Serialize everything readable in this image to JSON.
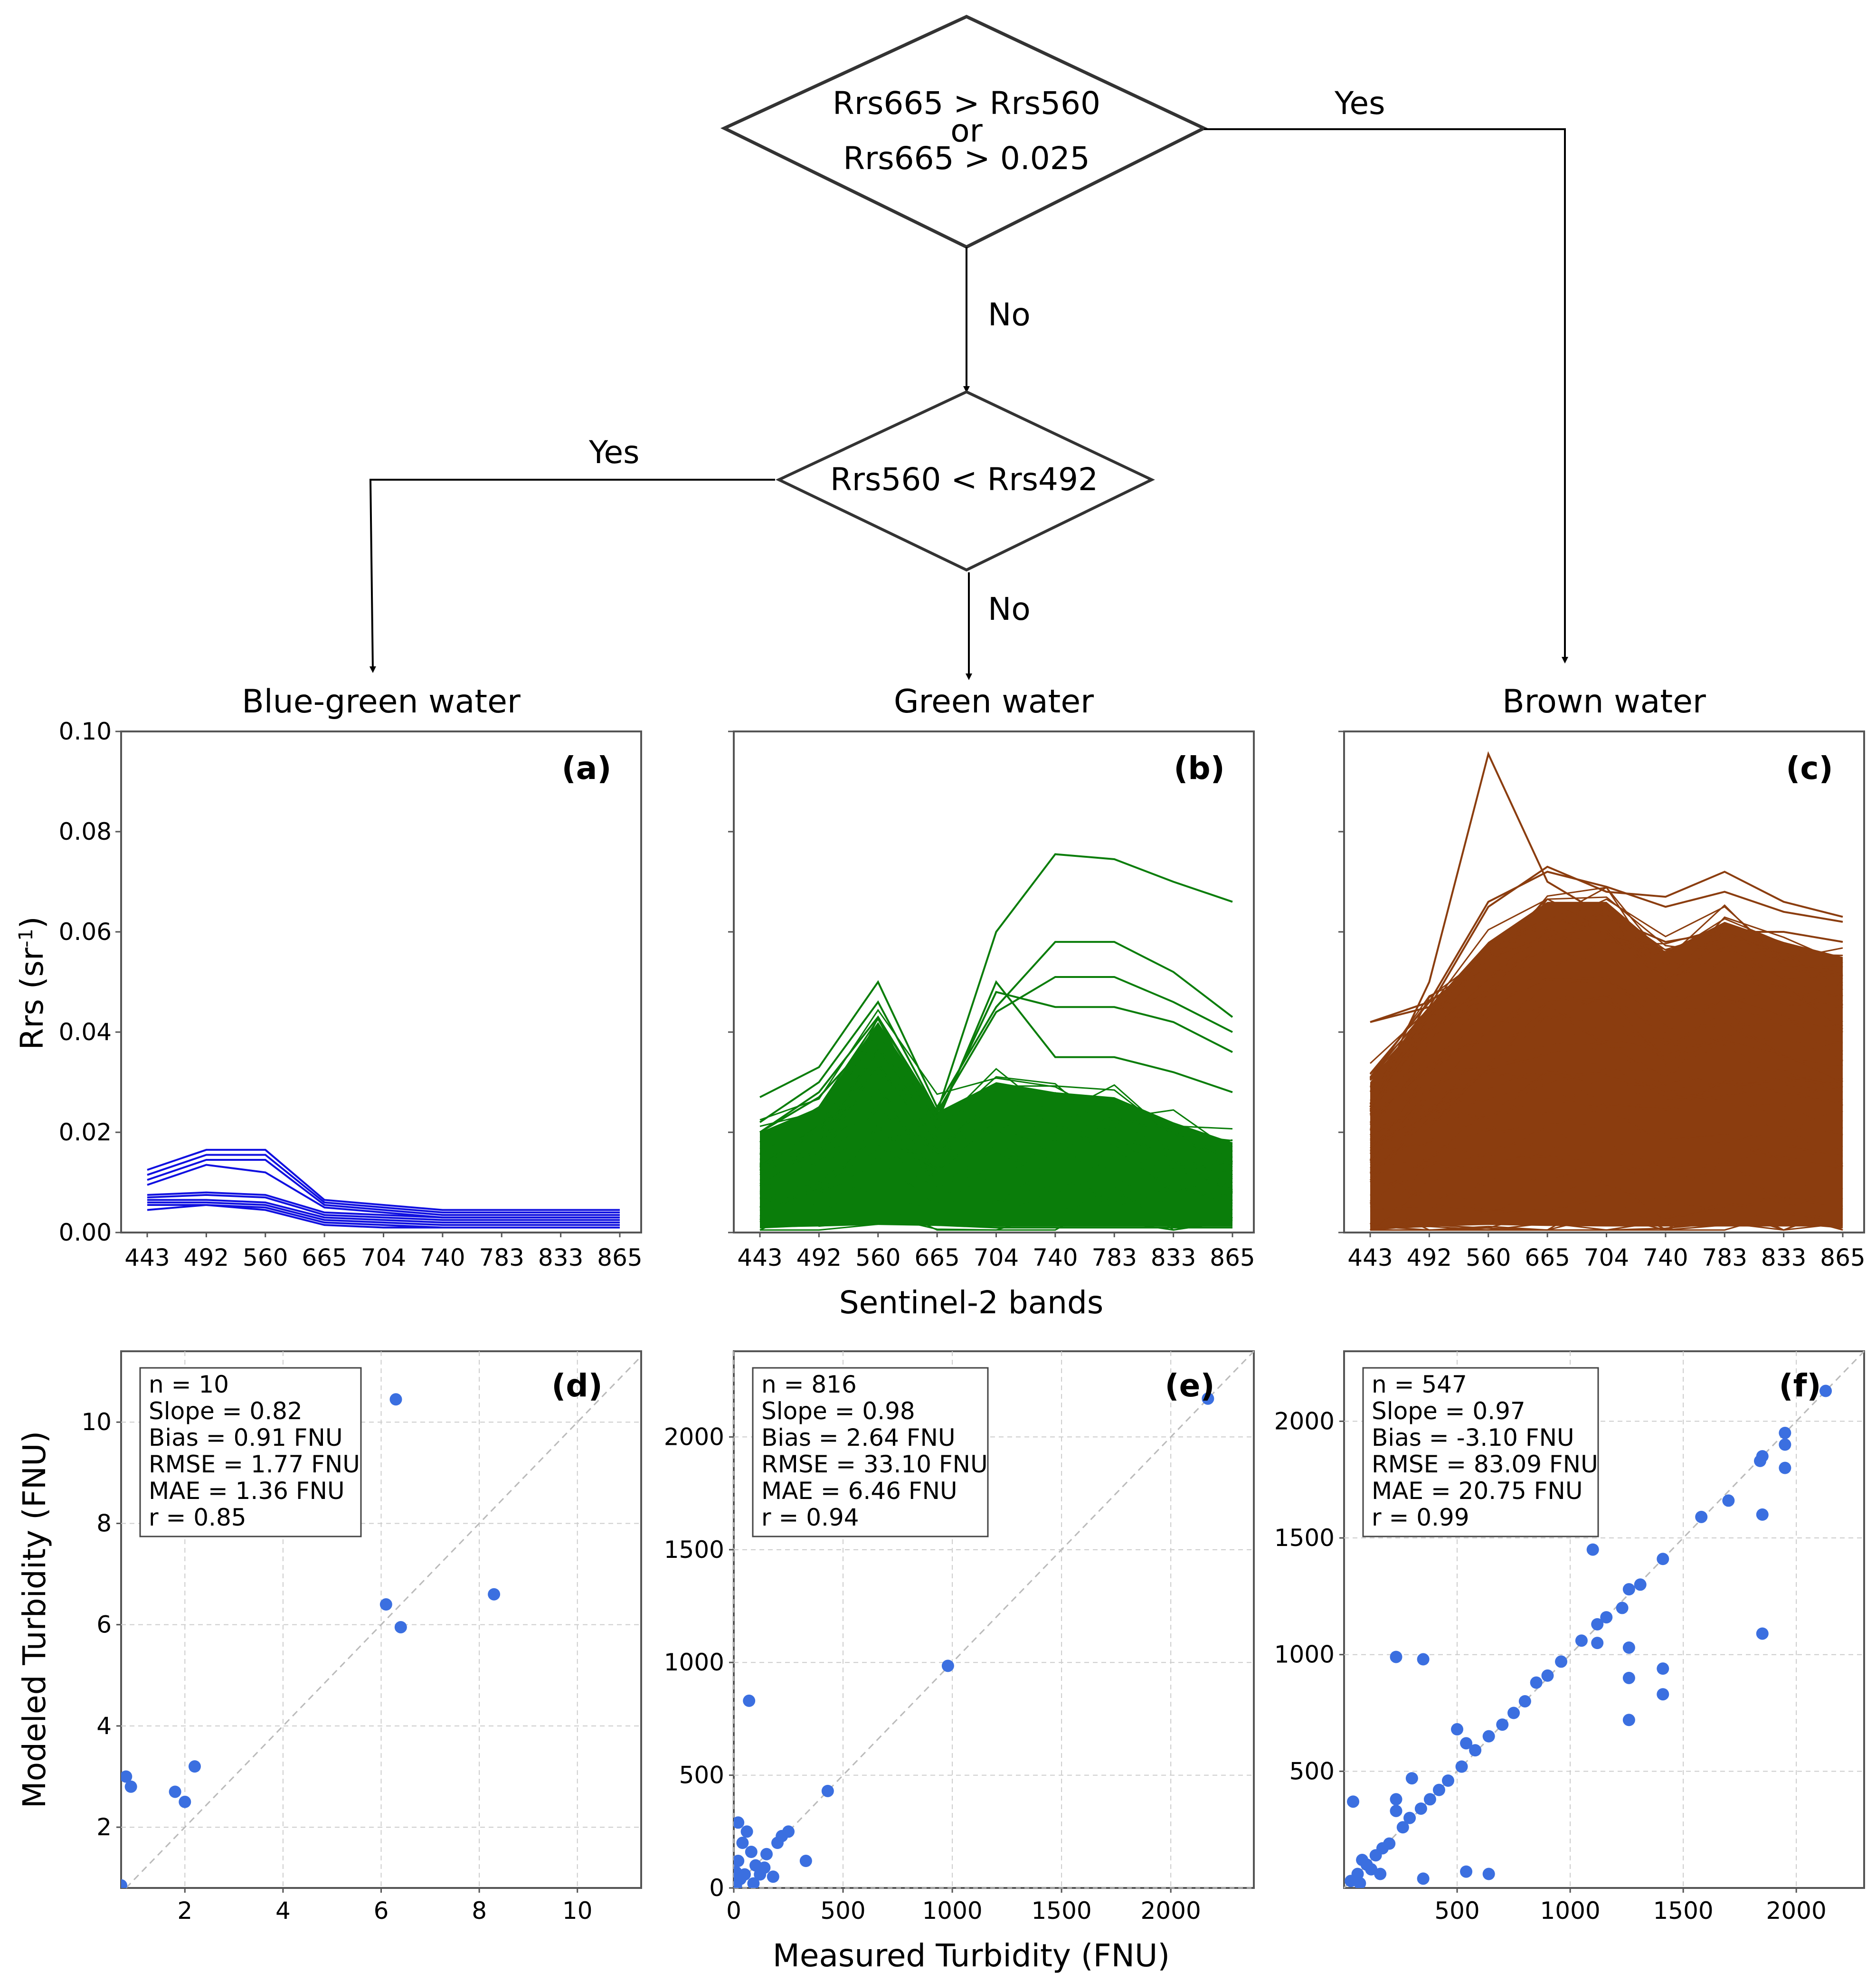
{
  "flowchart": {
    "decision1": {
      "line1": "Rrs665 > Rrs560",
      "line2": "or",
      "line3": "Rrs665 > 0.025"
    },
    "decision2": {
      "text": "Rrs560 < Rrs492"
    },
    "yes_label_1": "Yes",
    "no_label_1": "No",
    "yes_label_2": "Yes",
    "no_label_2": "No"
  },
  "colors": {
    "blue": "#1010e0",
    "green": "#0a7d0a",
    "brown": "#8b3d0f",
    "scatter": "#3b6fe0",
    "grid": "#cccccc",
    "diagonal": "#bbbbbb"
  },
  "chart_data": [
    {
      "id": "a",
      "type": "line",
      "title": "Blue-green water",
      "panel_label": "(a)",
      "categories": [
        "443",
        "492",
        "560",
        "665",
        "704",
        "740",
        "783",
        "833",
        "865"
      ],
      "ylim": [
        0,
        0.1
      ],
      "yticks": [
        "0.00",
        "0.02",
        "0.04",
        "0.06",
        "0.08",
        "0.10"
      ],
      "ylabel": "Rrs (sr-1)",
      "ylabel_main": "Rrs (sr",
      "ylabel_sup": "-1",
      "ylabel_end": ")",
      "series": [
        {
          "name": "s1",
          "values": [
            0.0125,
            0.0165,
            0.0165,
            0.0065,
            0.0055,
            0.0045,
            0.0045,
            0.0045,
            0.0045
          ]
        },
        {
          "name": "s2",
          "values": [
            0.0115,
            0.0155,
            0.0155,
            0.006,
            0.005,
            0.004,
            0.004,
            0.004,
            0.004
          ]
        },
        {
          "name": "s3",
          "values": [
            0.0105,
            0.0145,
            0.0145,
            0.0055,
            0.0045,
            0.0035,
            0.0035,
            0.0035,
            0.0035
          ]
        },
        {
          "name": "s4",
          "values": [
            0.0095,
            0.0135,
            0.012,
            0.005,
            0.004,
            0.003,
            0.003,
            0.003,
            0.003
          ]
        },
        {
          "name": "s5",
          "values": [
            0.0075,
            0.008,
            0.0075,
            0.004,
            0.0035,
            0.003,
            0.003,
            0.003,
            0.003
          ]
        },
        {
          "name": "s6",
          "values": [
            0.007,
            0.0075,
            0.007,
            0.0035,
            0.003,
            0.0025,
            0.0025,
            0.0025,
            0.0025
          ]
        },
        {
          "name": "s7",
          "values": [
            0.0065,
            0.0065,
            0.006,
            0.003,
            0.0025,
            0.002,
            0.002,
            0.002,
            0.002
          ]
        },
        {
          "name": "s8",
          "values": [
            0.006,
            0.006,
            0.0055,
            0.0025,
            0.002,
            0.0015,
            0.0015,
            0.0015,
            0.0015
          ]
        },
        {
          "name": "s9",
          "values": [
            0.0055,
            0.0055,
            0.005,
            0.002,
            0.0015,
            0.001,
            0.001,
            0.001,
            0.001
          ]
        },
        {
          "name": "s10",
          "values": [
            0.0045,
            0.0055,
            0.0045,
            0.0015,
            0.001,
            0.001,
            0.001,
            0.001,
            0.001
          ]
        }
      ]
    },
    {
      "id": "b",
      "type": "line",
      "title": "Green water",
      "panel_label": "(b)",
      "categories": [
        "443",
        "492",
        "560",
        "665",
        "704",
        "740",
        "783",
        "833",
        "865"
      ],
      "ylim": [
        0,
        0.1
      ],
      "n_series": 816,
      "series": [
        {
          "name": "max",
          "values": [
            0.02,
            0.028,
            0.043,
            0.024,
            0.06,
            0.0755,
            0.0745,
            0.07,
            0.066
          ]
        },
        {
          "name": "s2",
          "values": [
            0.027,
            0.033,
            0.05,
            0.025,
            0.045,
            0.058,
            0.058,
            0.052,
            0.043
          ]
        },
        {
          "name": "s3",
          "values": [
            0.022,
            0.03,
            0.046,
            0.024,
            0.044,
            0.051,
            0.051,
            0.046,
            0.04
          ]
        },
        {
          "name": "s4",
          "values": [
            0.02,
            0.027,
            0.04,
            0.023,
            0.048,
            0.045,
            0.045,
            0.042,
            0.036
          ]
        },
        {
          "name": "s5",
          "values": [
            0.018,
            0.025,
            0.038,
            0.022,
            0.05,
            0.035,
            0.035,
            0.032,
            0.028
          ]
        },
        {
          "name": "low",
          "values": [
            0.001,
            0.0015,
            0.003,
            0.0015,
            0.001,
            0.001,
            0.001,
            0.001,
            0.001
          ]
        }
      ]
    },
    {
      "id": "c",
      "type": "line",
      "title": "Brown water",
      "panel_label": "(c)",
      "categories": [
        "443",
        "492",
        "560",
        "665",
        "704",
        "740",
        "783",
        "833",
        "865"
      ],
      "ylim": [
        0,
        0.1
      ],
      "n_series": 547,
      "series": [
        {
          "name": "peak",
          "values": [
            0.025,
            0.05,
            0.0955,
            0.07,
            0.063,
            0.058,
            0.06,
            0.06,
            0.058
          ]
        },
        {
          "name": "s2",
          "values": [
            0.042,
            0.045,
            0.065,
            0.073,
            0.068,
            0.067,
            0.072,
            0.066,
            0.063
          ]
        },
        {
          "name": "s3",
          "values": [
            0.042,
            0.046,
            0.066,
            0.072,
            0.069,
            0.065,
            0.068,
            0.064,
            0.062
          ]
        },
        {
          "name": "low",
          "values": [
            0.001,
            0.002,
            0.004,
            0.005,
            0.004,
            0.002,
            0.002,
            0.002,
            0.001
          ]
        }
      ]
    },
    {
      "id": "d",
      "type": "scatter",
      "panel_label": "(d)",
      "xlim": [
        0.7,
        11.3
      ],
      "ylim": [
        0.8,
        11.4
      ],
      "xticks": [
        2,
        4,
        6,
        8,
        10
      ],
      "yticks": [
        2,
        4,
        6,
        8,
        10
      ],
      "xlabel": "Measured Turbidity (FNU)",
      "ylabel": "Modeled Turbidity (FNU)",
      "stats": [
        "n = 10",
        "Slope = 0.82",
        "Bias = 0.91 FNU",
        "RMSE = 1.77 FNU",
        "MAE = 1.36 FNU",
        "r = 0.85"
      ],
      "points": [
        [
          0.7,
          0.85
        ],
        [
          0.8,
          3.0
        ],
        [
          0.9,
          2.8
        ],
        [
          1.8,
          2.7
        ],
        [
          2.0,
          2.5
        ],
        [
          2.2,
          3.2
        ],
        [
          6.1,
          6.4
        ],
        [
          6.4,
          5.95
        ],
        [
          6.3,
          10.45
        ],
        [
          8.3,
          6.6
        ]
      ]
    },
    {
      "id": "e",
      "type": "scatter",
      "panel_label": "(e)",
      "xlim": [
        0,
        2380
      ],
      "ylim": [
        0,
        2380
      ],
      "xticks": [
        0,
        500,
        1000,
        1500,
        2000
      ],
      "yticks": [
        0,
        500,
        1000,
        1500,
        2000
      ],
      "stats": [
        "n = 816",
        "Slope = 0.98",
        "Bias = 2.64 FNU",
        "RMSE = 33.10 FNU",
        "MAE = 6.46 FNU",
        "r = 0.94"
      ],
      "points": [
        [
          2170,
          2170
        ],
        [
          980,
          985
        ],
        [
          430,
          430
        ],
        [
          70,
          830
        ],
        [
          20,
          290
        ],
        [
          60,
          250
        ],
        [
          330,
          120
        ],
        [
          250,
          250
        ],
        [
          200,
          200
        ],
        [
          150,
          150
        ],
        [
          100,
          100
        ],
        [
          80,
          160
        ],
        [
          50,
          60
        ],
        [
          30,
          40
        ],
        [
          10,
          10
        ],
        [
          120,
          60
        ],
        [
          180,
          50
        ],
        [
          20,
          120
        ],
        [
          40,
          200
        ],
        [
          90,
          20
        ],
        [
          140,
          90
        ],
        [
          220,
          230
        ],
        [
          10,
          70
        ],
        [
          5,
          20
        ]
      ]
    },
    {
      "id": "f",
      "type": "scatter",
      "panel_label": "(f)",
      "xlim": [
        0,
        2300
      ],
      "ylim": [
        0,
        2300
      ],
      "xticks": [
        500,
        1000,
        1500,
        2000
      ],
      "yticks": [
        500,
        1000,
        1500,
        2000
      ],
      "stats": [
        "n = 547",
        "Slope = 0.97",
        "Bias = -3.10 FNU",
        "RMSE = 83.09 FNU",
        "MAE = 20.75 FNU",
        "r = 0.99"
      ],
      "points": [
        [
          2130,
          2130
        ],
        [
          1950,
          1950
        ],
        [
          1950,
          1900
        ],
        [
          1950,
          1800
        ],
        [
          1850,
          1850
        ],
        [
          1840,
          1830
        ],
        [
          1850,
          1600
        ],
        [
          1850,
          1090
        ],
        [
          1700,
          1660
        ],
        [
          1580,
          1590
        ],
        [
          1410,
          1410
        ],
        [
          1410,
          940
        ],
        [
          1410,
          830
        ],
        [
          1310,
          1300
        ],
        [
          1260,
          1280
        ],
        [
          1260,
          1030
        ],
        [
          1260,
          900
        ],
        [
          1260,
          720
        ],
        [
          1100,
          1450
        ],
        [
          1230,
          1200
        ],
        [
          1160,
          1160
        ],
        [
          1120,
          1130
        ],
        [
          1120,
          1050
        ],
        [
          1050,
          1060
        ],
        [
          960,
          970
        ],
        [
          900,
          910
        ],
        [
          850,
          880
        ],
        [
          800,
          800
        ],
        [
          750,
          750
        ],
        [
          700,
          700
        ],
        [
          640,
          650
        ],
        [
          580,
          590
        ],
        [
          520,
          520
        ],
        [
          500,
          680
        ],
        [
          540,
          620
        ],
        [
          460,
          460
        ],
        [
          420,
          420
        ],
        [
          380,
          380
        ],
        [
          340,
          340
        ],
        [
          230,
          990
        ],
        [
          350,
          980
        ],
        [
          230,
          380
        ],
        [
          230,
          330
        ],
        [
          300,
          470
        ],
        [
          290,
          300
        ],
        [
          260,
          260
        ],
        [
          200,
          190
        ],
        [
          170,
          170
        ],
        [
          140,
          140
        ],
        [
          100,
          100
        ],
        [
          60,
          60
        ],
        [
          30,
          30
        ],
        [
          40,
          370
        ],
        [
          80,
          120
        ],
        [
          120,
          80
        ],
        [
          350,
          40
        ],
        [
          540,
          70
        ],
        [
          640,
          60
        ],
        [
          160,
          60
        ],
        [
          70,
          20
        ]
      ]
    }
  ],
  "shared": {
    "xlabel_top": "Sentinel-2 bands",
    "xlabel_bottom": "Measured Turbidity (FNU)"
  }
}
